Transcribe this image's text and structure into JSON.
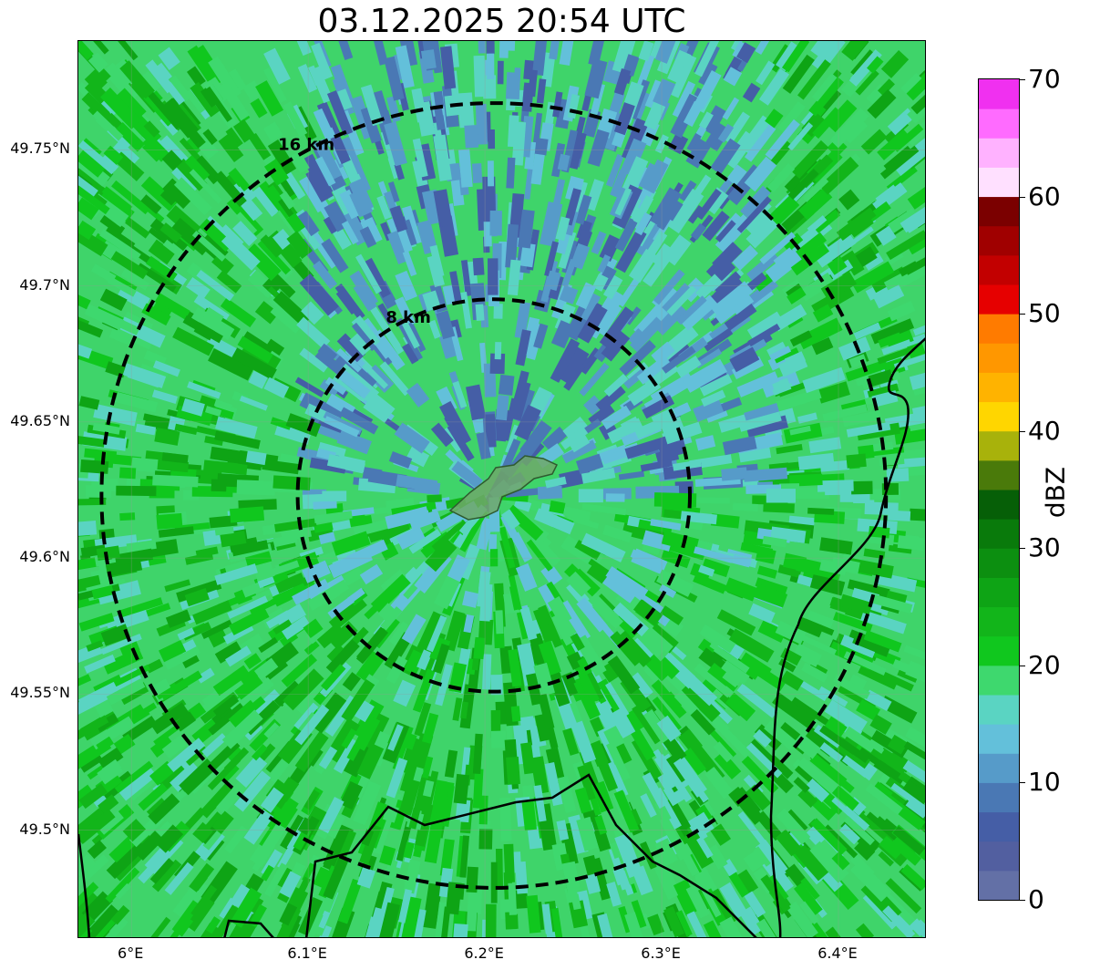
{
  "title": "03.12.2025 20:54 UTC",
  "map": {
    "extent": {
      "lon_min": 5.97,
      "lon_max": 6.45,
      "lat_min": 49.46,
      "lat_max": 49.79
    },
    "center": {
      "lon": 6.205,
      "lat": 49.623
    },
    "range_rings": [
      {
        "label": "8 km",
        "radius_km": 8
      },
      {
        "label": "16 km",
        "radius_km": 16
      }
    ],
    "lat_ticks": [
      {
        "value": 49.75,
        "label": "49.75°N"
      },
      {
        "value": 49.7,
        "label": "49.7°N"
      },
      {
        "value": 49.65,
        "label": "49.65°N"
      },
      {
        "value": 49.6,
        "label": "49.6°N"
      },
      {
        "value": 49.55,
        "label": "49.55°N"
      },
      {
        "value": 49.5,
        "label": "49.5°N"
      }
    ],
    "lon_ticks": [
      {
        "value": 6.0,
        "label": "6°E"
      },
      {
        "value": 6.1,
        "label": "6.1°E"
      },
      {
        "value": 6.2,
        "label": "6.2°E"
      },
      {
        "value": 6.3,
        "label": "6.3°E"
      },
      {
        "value": 6.4,
        "label": "6.4°E"
      }
    ]
  },
  "colorbar": {
    "unit": "dBZ",
    "min": 0,
    "max": 70,
    "tick_labels": [
      "0",
      "10",
      "20",
      "30",
      "40",
      "50",
      "60",
      "70"
    ],
    "colors": [
      "#6370a6",
      "#525fa0",
      "#455ea6",
      "#4a78b4",
      "#569bc9",
      "#63c0da",
      "#5ad4c2",
      "#3ed86e",
      "#10c71e",
      "#12b51a",
      "#0ea415",
      "#0c8f10",
      "#097a0b",
      "#065f07",
      "#4a7a0a",
      "#a8b20b",
      "#ffd600",
      "#ffb300",
      "#ff9700",
      "#ff7b00",
      "#e60000",
      "#c20000",
      "#a00000",
      "#7b0000",
      "#ffe0ff",
      "#ffb2ff",
      "#ff6bff",
      "#f030f0"
    ],
    "radar_palette": [
      "#455ea6",
      "#4a78b4",
      "#569bc9",
      "#63c0da",
      "#5ad4c2",
      "#3ed86e",
      "#10c71e",
      "#12b51a",
      "#0ea415",
      "#0c8f10",
      "#097a0b"
    ]
  }
}
